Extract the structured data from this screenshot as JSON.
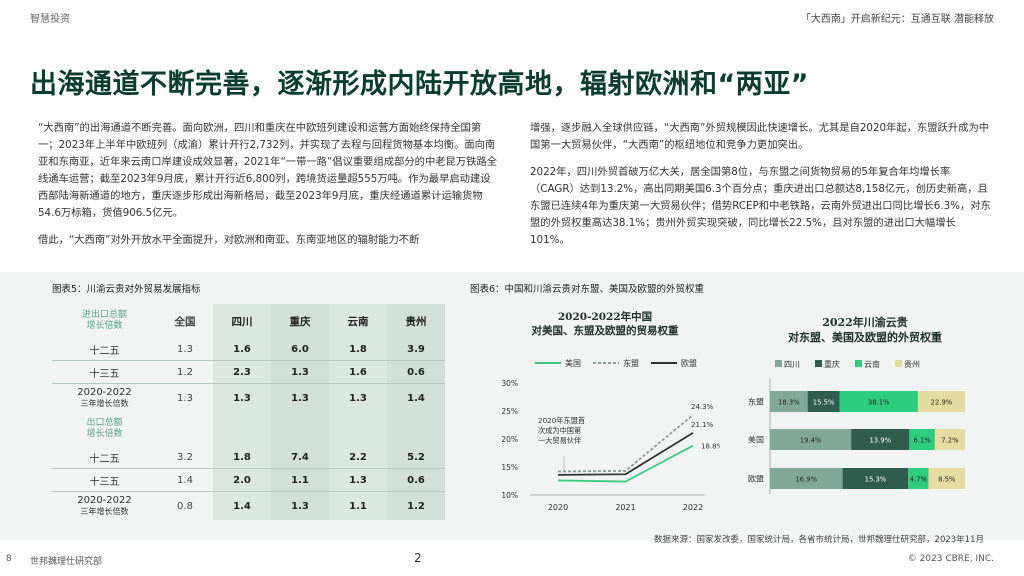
{
  "header": {
    "left": "智慧投资",
    "right": "「大西南」开启新纪元：互通互联 潜能释放"
  },
  "title": "出海通道不断完善，逐渐形成内陆开放高地，辐射欧洲和“两亚”",
  "left_col": {
    "p1": "“大西南”的出海通道不断完善。面向欧洲，四川和重庆在中欧班列建设和运营方面始终保持全国第一；2023年上半年中欧班列（成渝）累计开行2,732列，并实现了去程与回程货物基本均衡。面向南亚和东南亚，近年来云南口岸建设成效显著，2021年“一带一路”倡议重要组成部分的中老昆万铁路全线通车运营；截至2023年9月底，累计开行近6,800列，跨境货运量超555万吨。作为最早启动建设西部陆海新通道的地方，重庆逐步形成出海新格局，截至2023年9月底，重庆经通道累计运输货物54.6万标箱，货值906.5亿元。",
    "p2": "借此，“大西南”对外开放水平全面提升，对欧洲和南亚、东南亚地区的辐射能力不断"
  },
  "right_col": {
    "p1": "增强，逐步融入全球供应链，“大西南”外贸规模因此快速增长。尤其是自2020年起，东盟跃升成为中国第一大贸易伙伴，“大西南”的枢纽地位和竞争力更加突出。",
    "p2": "2022年，四川外贸首破万亿大关，居全国第8位，与东盟之间货物贸易的5年复合年均增长率（CAGR）达到13.2%，高出同期美国6.3个百分点；重庆进出口总额达8,158亿元，创历史新高，且东盟已连续4年为重庆第一大贸易伙伴；借势RCEP和中老铁路，云南外贸进出口同比增长6.3%，对东盟的外贸权重高达38.1%；贵州外贸实现突破，同比增长22.5%，且对东盟的进出口大幅增长101%。"
  },
  "table": {
    "title": "图表5：川渝云贵对外贸易发展指标",
    "group1": "进出口总额\n增长倍数",
    "group2": "出口总额\n增长倍数",
    "columns": [
      "全国",
      "四川",
      "重庆",
      "云南",
      "贵州"
    ],
    "rows1": [
      {
        "label": "十二五",
        "sub": "",
        "values": [
          "1.3",
          "1.6",
          "6.0",
          "1.8",
          "3.9"
        ]
      },
      {
        "label": "十三五",
        "sub": "",
        "values": [
          "1.2",
          "2.3",
          "1.3",
          "1.6",
          "0.6"
        ]
      },
      {
        "label": "2020-2022",
        "sub": "三年增长倍数",
        "values": [
          "1.3",
          "1.3",
          "1.3",
          "1.3",
          "1.4"
        ]
      }
    ],
    "rows2": [
      {
        "label": "十二五",
        "sub": "",
        "values": [
          "3.2",
          "1.8",
          "7.4",
          "2.2",
          "5.2"
        ]
      },
      {
        "label": "十三五",
        "sub": "",
        "values": [
          "1.4",
          "2.0",
          "1.1",
          "1.3",
          "0.6"
        ]
      },
      {
        "label": "2020-2022",
        "sub": "三年增长倍数",
        "values": [
          "0.8",
          "1.4",
          "1.3",
          "1.1",
          "1.2"
        ]
      }
    ]
  },
  "figure_title": "图表6：中国和川渝云贵对东盟、美国及欧盟的外贸权重",
  "chart_data": [
    {
      "type": "line",
      "title": "2020-2022年中国\n对美国、东盟及欧盟的贸易权重",
      "x": [
        "2020",
        "2021",
        "2022"
      ],
      "y_ticks": [
        "10%",
        "15%",
        "20%",
        "25%",
        "30%"
      ],
      "ylim": [
        10,
        30
      ],
      "annotation": "2020年东盟首\n次成为中国第\n一大贸易伙伴",
      "series": [
        {
          "name": "美国",
          "color": "#3fca82",
          "dash": false,
          "values": [
            12.6,
            12.4,
            18.8
          ],
          "end_label": "18.8%"
        },
        {
          "name": "东盟",
          "color": "#8a9a94",
          "dash": true,
          "values": [
            14.2,
            14.3,
            24.3
          ],
          "end_label": "24.3%"
        },
        {
          "name": "欧盟",
          "color": "#333333",
          "dash": false,
          "values": [
            13.6,
            13.7,
            21.1
          ],
          "end_label": "21.1%"
        }
      ]
    },
    {
      "type": "bar",
      "stacked": true,
      "horizontal": true,
      "title": "2022年川渝云贵\n对东盟、美国及欧盟的外贸权重",
      "categories": [
        "东盟",
        "美国",
        "欧盟"
      ],
      "series": [
        {
          "name": "四川",
          "color": "#7fa899",
          "values": [
            18.3,
            19.4,
            16.9
          ],
          "labels": [
            "18.3%",
            "19.4%",
            "16.9%"
          ]
        },
        {
          "name": "重庆",
          "color": "#2e5c4d",
          "values": [
            15.5,
            13.9,
            15.3
          ],
          "labels": [
            "15.5%",
            "13.9%",
            "15.3%"
          ]
        },
        {
          "name": "云南",
          "color": "#2dcc7e",
          "values": [
            38.1,
            6.1,
            4.7
          ],
          "labels": [
            "38.1%",
            "6.1%",
            "4.7%"
          ]
        },
        {
          "name": "贵州",
          "color": "#e4dca0",
          "values": [
            22.9,
            7.2,
            8.5
          ],
          "labels": [
            "22.9%",
            "7.2%",
            "8.5%"
          ]
        }
      ]
    }
  ],
  "source": "数据来源：国家发改委，国家统计局，各省市统计局，世邦魏理仕研究部，2023年11月",
  "footer": {
    "page_num": "8",
    "org": "世邦魏理仕研究部",
    "center_num": "2",
    "copyright": "© 2023 CBRE, INC."
  }
}
